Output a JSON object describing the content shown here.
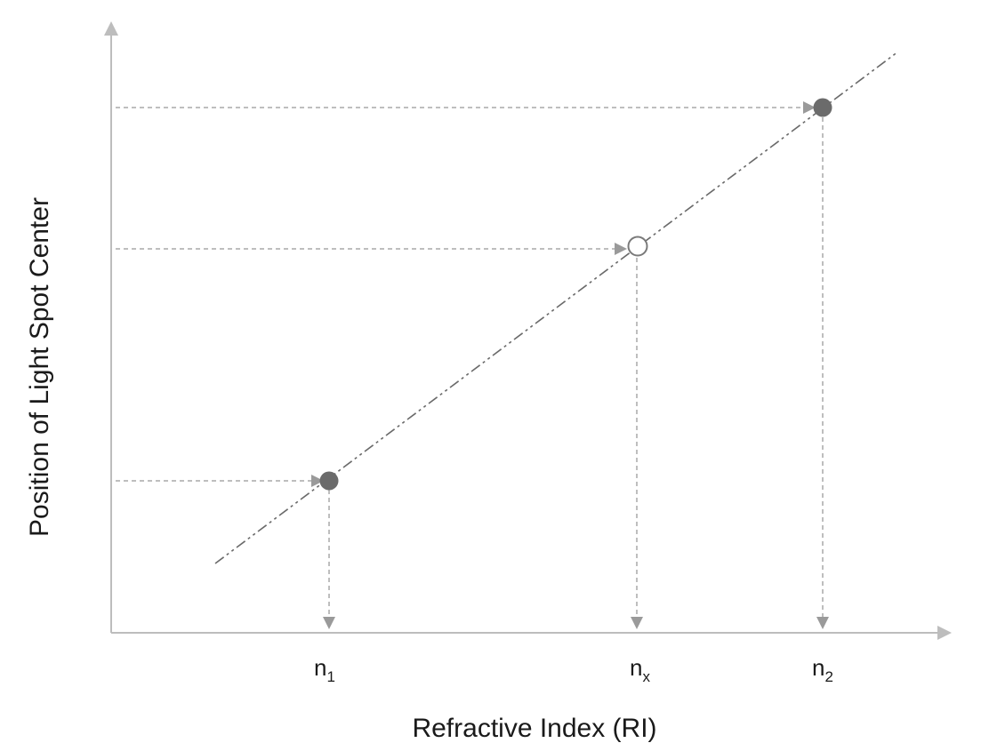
{
  "diagram": {
    "x_axis_label": "Refractive Index (RI)",
    "y_axis_label": "Position of Light Spot Center",
    "points": [
      {
        "id": "n1",
        "label_base": "n",
        "label_sub": "1",
        "marker": "filled",
        "color": "#6b6b6b"
      },
      {
        "id": "nx",
        "label_base": "n",
        "label_sub": "x",
        "marker": "open",
        "color": "#7a7a7a"
      },
      {
        "id": "n2",
        "label_base": "n",
        "label_sub": "2",
        "marker": "filled",
        "color": "#6b6b6b"
      }
    ],
    "fit_line_style": "dash-dot-dot",
    "guide_line_style": "dashed",
    "colors": {
      "axis": "#bdbdbd",
      "guide": "#a8a8a8",
      "fit_line": "#6a6a6a",
      "text": "#1a1a1a"
    }
  }
}
